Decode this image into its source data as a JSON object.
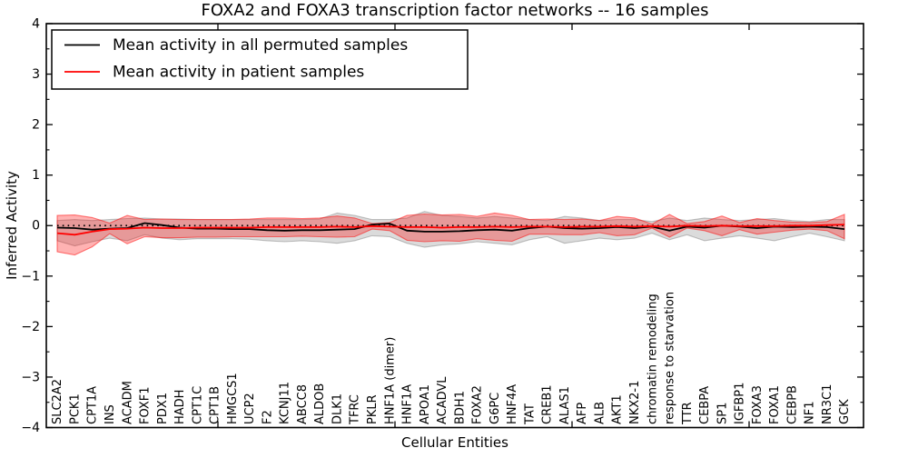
{
  "figure": {
    "title": "FOXA2 and FOXA3 transcription factor networks -- 16 samples"
  },
  "chart_data": {
    "type": "line",
    "title": "FOXA2 and FOXA3 transcription factor networks -- 16 samples",
    "xlabel": "Cellular Entities",
    "ylabel": "Inferred Activity",
    "ylim": [
      -4,
      4
    ],
    "ytick_values": [
      4,
      3,
      2,
      1,
      0,
      -1,
      -2,
      -3,
      -4
    ],
    "ytick_labels": [
      "4",
      "3",
      "2",
      "1",
      "0",
      "−1",
      "−2",
      "−3",
      "−4"
    ],
    "grid": false,
    "legend_position": "upper-left",
    "zero_reference_line": {
      "y": 0,
      "style": "dotted",
      "color": "#000000"
    },
    "categories": [
      "SLC2A2",
      "PCK1",
      "CPT1A",
      "INS",
      "ACADM",
      "FOXF1",
      "PDX1",
      "HADH",
      "CPT1C",
      "CPT1B",
      "HMGCS1",
      "UCP2",
      "F2",
      "KCNJ11",
      "ABCC8",
      "ALDOB",
      "DLK1",
      "TFRC",
      "PKLR",
      "HNF1A (dimer)",
      "HNF1A",
      "APOA1",
      "ACADVL",
      "BDH1",
      "FOXA2",
      "G6PC",
      "HNF4A",
      "TAT",
      "CREB1",
      "ALAS1",
      "AFP",
      "ALB",
      "AKT1",
      "NKX2-1",
      "chromatin remodeling",
      "response to starvation",
      "TTR",
      "CEBPA",
      "SP1",
      "IGFBP1",
      "FOXA3",
      "FOXA1",
      "CEBPB",
      "NF1",
      "NR3C1",
      "GCK"
    ],
    "series": [
      {
        "name": "Mean activity in all permuted samples",
        "color": "#000000",
        "values": [
          -0.04,
          -0.05,
          -0.08,
          -0.06,
          -0.05,
          0.05,
          0.01,
          -0.04,
          -0.06,
          -0.06,
          -0.07,
          -0.07,
          -0.09,
          -0.1,
          -0.09,
          -0.09,
          -0.08,
          -0.07,
          0.02,
          0.04,
          -0.1,
          -0.12,
          -0.12,
          -0.11,
          -0.09,
          -0.08,
          -0.1,
          -0.05,
          -0.02,
          -0.05,
          -0.06,
          -0.05,
          -0.03,
          -0.05,
          -0.02,
          -0.1,
          -0.02,
          -0.04,
          0.0,
          -0.02,
          -0.05,
          -0.02,
          -0.03,
          -0.02,
          -0.03,
          -0.07
        ]
      },
      {
        "name": "Mean activity in patient samples",
        "color": "#ff0000",
        "values": [
          -0.15,
          -0.18,
          -0.12,
          -0.07,
          -0.06,
          -0.04,
          -0.05,
          -0.05,
          -0.04,
          -0.04,
          -0.04,
          -0.04,
          -0.03,
          -0.03,
          -0.03,
          -0.03,
          -0.02,
          -0.03,
          -0.01,
          -0.02,
          -0.03,
          -0.03,
          -0.04,
          -0.03,
          -0.03,
          -0.02,
          -0.03,
          -0.02,
          -0.02,
          -0.03,
          -0.02,
          -0.02,
          -0.01,
          -0.02,
          -0.01,
          -0.02,
          0.0,
          -0.01,
          0.0,
          -0.01,
          -0.01,
          -0.01,
          0.0,
          0.0,
          0.01,
          0.02
        ]
      }
    ],
    "bands": [
      {
        "name": "permuted-samples-std-band",
        "fill": "rgba(0,0,0,0.14)",
        "edge": "rgba(0,0,0,0.22)",
        "upper": [
          0.1,
          0.12,
          0.1,
          0.12,
          0.14,
          0.15,
          0.13,
          0.13,
          0.12,
          0.12,
          0.12,
          0.12,
          0.12,
          0.12,
          0.12,
          0.13,
          0.25,
          0.2,
          0.12,
          0.12,
          0.15,
          0.28,
          0.2,
          0.18,
          0.15,
          0.18,
          0.15,
          0.12,
          0.1,
          0.18,
          0.15,
          0.1,
          0.12,
          0.12,
          0.08,
          0.15,
          0.1,
          0.15,
          0.12,
          0.1,
          0.12,
          0.14,
          0.1,
          0.08,
          0.12,
          0.12
        ],
        "lower": [
          -0.3,
          -0.4,
          -0.32,
          -0.25,
          -0.3,
          -0.18,
          -0.25,
          -0.28,
          -0.26,
          -0.26,
          -0.26,
          -0.27,
          -0.3,
          -0.32,
          -0.3,
          -0.32,
          -0.35,
          -0.3,
          -0.2,
          -0.22,
          -0.35,
          -0.43,
          -0.38,
          -0.36,
          -0.32,
          -0.35,
          -0.38,
          -0.28,
          -0.22,
          -0.35,
          -0.3,
          -0.25,
          -0.28,
          -0.25,
          -0.15,
          -0.28,
          -0.18,
          -0.3,
          -0.25,
          -0.2,
          -0.25,
          -0.3,
          -0.22,
          -0.15,
          -0.22,
          -0.3
        ]
      },
      {
        "name": "patient-samples-std-band",
        "fill": "rgba(255,0,0,0.30)",
        "edge": "rgba(255,0,0,0.50)",
        "upper": [
          0.2,
          0.21,
          0.16,
          0.05,
          0.2,
          0.12,
          0.13,
          0.12,
          0.12,
          0.12,
          0.12,
          0.13,
          0.15,
          0.15,
          0.14,
          0.15,
          0.19,
          0.15,
          0.04,
          0.06,
          0.2,
          0.23,
          0.21,
          0.22,
          0.18,
          0.25,
          0.2,
          0.12,
          0.13,
          0.12,
          0.13,
          0.1,
          0.18,
          0.15,
          0.03,
          0.22,
          0.04,
          0.08,
          0.19,
          0.06,
          0.14,
          0.1,
          0.07,
          0.06,
          0.08,
          0.22
        ],
        "lower": [
          -0.52,
          -0.58,
          -0.42,
          -0.16,
          -0.36,
          -0.22,
          -0.24,
          -0.24,
          -0.23,
          -0.23,
          -0.22,
          -0.22,
          -0.22,
          -0.22,
          -0.21,
          -0.22,
          -0.23,
          -0.22,
          -0.07,
          -0.1,
          -0.29,
          -0.32,
          -0.3,
          -0.31,
          -0.26,
          -0.29,
          -0.31,
          -0.17,
          -0.17,
          -0.18,
          -0.18,
          -0.14,
          -0.2,
          -0.18,
          -0.05,
          -0.23,
          -0.05,
          -0.1,
          -0.2,
          -0.08,
          -0.17,
          -0.13,
          -0.09,
          -0.07,
          -0.1,
          -0.26
        ]
      }
    ]
  }
}
